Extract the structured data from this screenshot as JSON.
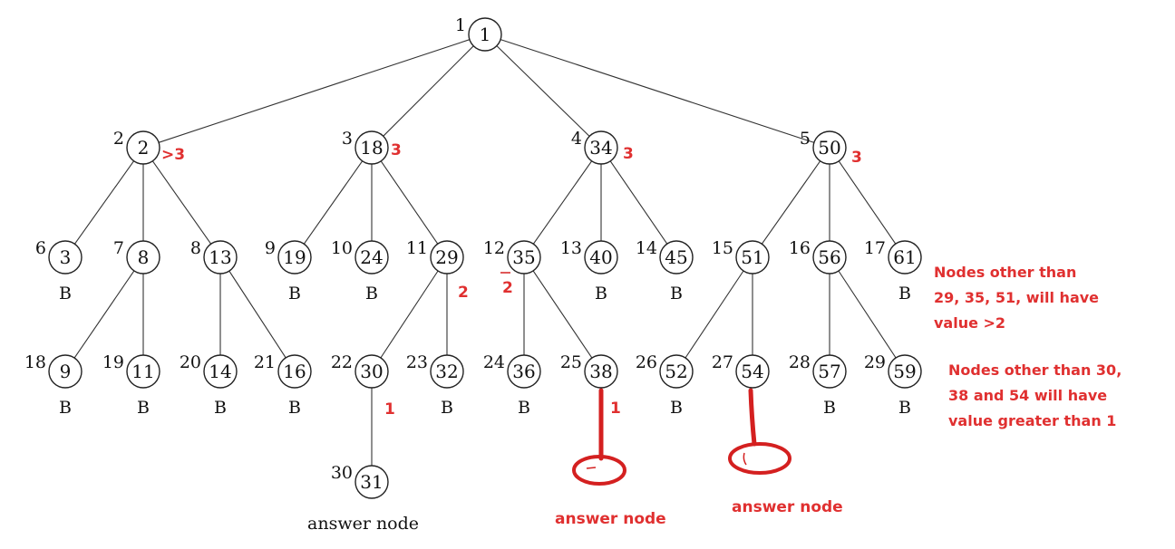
{
  "nodes": [
    {
      "id": 1,
      "index": "1",
      "value": "1",
      "mark": ""
    },
    {
      "id": 2,
      "index": "2",
      "value": "2",
      "mark": ""
    },
    {
      "id": 3,
      "index": "3",
      "value": "18",
      "mark": ""
    },
    {
      "id": 4,
      "index": "4",
      "value": "34",
      "mark": ""
    },
    {
      "id": 5,
      "index": "5",
      "value": "50",
      "mark": ""
    },
    {
      "id": 6,
      "index": "6",
      "value": "3",
      "mark": "B"
    },
    {
      "id": 7,
      "index": "7",
      "value": "8",
      "mark": ""
    },
    {
      "id": 8,
      "index": "8",
      "value": "13",
      "mark": ""
    },
    {
      "id": 9,
      "index": "9",
      "value": "19",
      "mark": "B"
    },
    {
      "id": 10,
      "index": "10",
      "value": "24",
      "mark": "B"
    },
    {
      "id": 11,
      "index": "11",
      "value": "29",
      "mark": ""
    },
    {
      "id": 12,
      "index": "12",
      "value": "35",
      "mark": ""
    },
    {
      "id": 13,
      "index": "13",
      "value": "40",
      "mark": "B"
    },
    {
      "id": 14,
      "index": "14",
      "value": "45",
      "mark": "B"
    },
    {
      "id": 15,
      "index": "15",
      "value": "51",
      "mark": ""
    },
    {
      "id": 16,
      "index": "16",
      "value": "56",
      "mark": ""
    },
    {
      "id": 17,
      "index": "17",
      "value": "61",
      "mark": "B"
    },
    {
      "id": 18,
      "index": "18",
      "value": "9",
      "mark": "B"
    },
    {
      "id": 19,
      "index": "19",
      "value": "11",
      "mark": "B"
    },
    {
      "id": 20,
      "index": "20",
      "value": "14",
      "mark": "B"
    },
    {
      "id": 21,
      "index": "21",
      "value": "16",
      "mark": "B"
    },
    {
      "id": 22,
      "index": "22",
      "value": "30",
      "mark": ""
    },
    {
      "id": 23,
      "index": "23",
      "value": "32",
      "mark": "B"
    },
    {
      "id": 24,
      "index": "24",
      "value": "36",
      "mark": "B"
    },
    {
      "id": 25,
      "index": "25",
      "value": "38",
      "mark": ""
    },
    {
      "id": 26,
      "index": "26",
      "value": "52",
      "mark": "B"
    },
    {
      "id": 27,
      "index": "27",
      "value": "54",
      "mark": ""
    },
    {
      "id": 28,
      "index": "28",
      "value": "57",
      "mark": "B"
    },
    {
      "id": 29,
      "index": "29",
      "value": "59",
      "mark": "B"
    },
    {
      "id": 30,
      "index": "30",
      "value": "31",
      "mark": ""
    }
  ],
  "edges": [
    [
      1,
      2
    ],
    [
      1,
      3
    ],
    [
      1,
      4
    ],
    [
      1,
      5
    ],
    [
      2,
      6
    ],
    [
      2,
      7
    ],
    [
      2,
      8
    ],
    [
      3,
      9
    ],
    [
      3,
      10
    ],
    [
      3,
      11
    ],
    [
      4,
      12
    ],
    [
      4,
      13
    ],
    [
      4,
      14
    ],
    [
      5,
      15
    ],
    [
      5,
      16
    ],
    [
      5,
      17
    ],
    [
      7,
      18
    ],
    [
      7,
      19
    ],
    [
      8,
      20
    ],
    [
      8,
      21
    ],
    [
      11,
      22
    ],
    [
      11,
      23
    ],
    [
      12,
      24
    ],
    [
      12,
      25
    ],
    [
      15,
      26
    ],
    [
      15,
      27
    ],
    [
      16,
      28
    ],
    [
      16,
      29
    ],
    [
      22,
      30
    ]
  ],
  "bound_annotations": [
    {
      "node": 2,
      "text": ">3"
    },
    {
      "node": 3,
      "text": "3"
    },
    {
      "node": 4,
      "text": "3"
    },
    {
      "node": 5,
      "text": "3"
    },
    {
      "node": 11,
      "text": "2"
    },
    {
      "node": 12,
      "text": "2"
    },
    {
      "node": 22,
      "text": "1"
    },
    {
      "node": 25,
      "text": "1"
    }
  ],
  "answer_label_original": "answer node",
  "answer_label_added": "answer node",
  "notes": {
    "level3": [
      "Nodes other than",
      "29, 35, 51, will have",
      "value >2"
    ],
    "level4": [
      "Nodes other than 30,",
      "38 and 54 will have",
      "value greater than 1"
    ]
  },
  "colors": {
    "annotation": "#e03030",
    "ink": "#111111"
  }
}
